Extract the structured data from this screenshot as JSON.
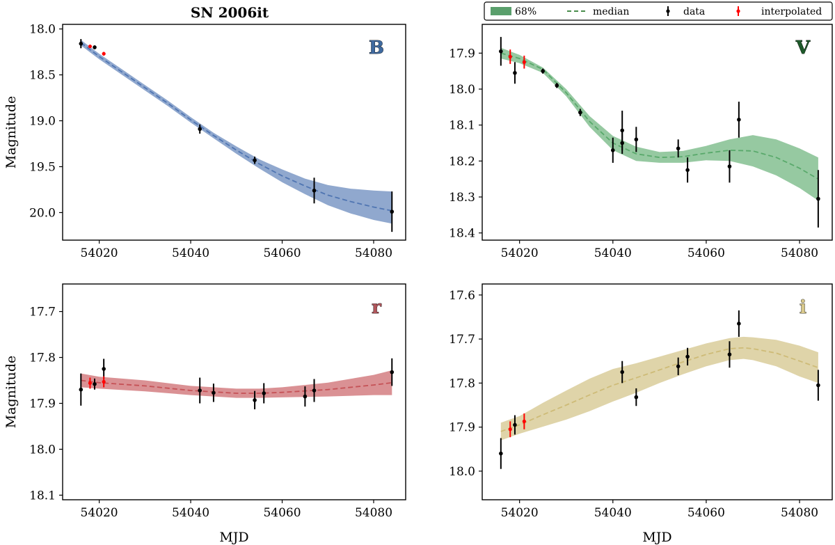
{
  "figure": {
    "title": "SN 2006it",
    "ylabel": "Magnitude",
    "xlabel": "MJD",
    "legend": {
      "placement": "top-right",
      "entries": [
        {
          "key": "band",
          "label": "68%"
        },
        {
          "key": "median",
          "label": "median"
        },
        {
          "key": "data",
          "label": "data"
        },
        {
          "key": "interp",
          "label": "interpolated"
        }
      ],
      "colors": {
        "band": "#5a9f6c",
        "median": "#2e7d32",
        "data": "#000000",
        "interp": "#ff0000"
      }
    }
  },
  "chart_data": [
    {
      "type": "line",
      "band": "B",
      "color": "#4c72b0",
      "label_color": "#3f6aa0",
      "xlim": [
        54012,
        54087
      ],
      "ylim": [
        20.3,
        17.95
      ],
      "inverted_y": true,
      "xticks": [
        54020,
        54040,
        54060,
        54080
      ],
      "yticks": [
        18.0,
        18.5,
        19.0,
        19.5,
        20.0
      ],
      "ytick_labels": [
        "18.0",
        "18.5",
        "19.0",
        "19.5",
        "20.0"
      ],
      "median": {
        "x": [
          54016,
          54020,
          54025,
          54030,
          54035,
          54040,
          54045,
          54050,
          54055,
          54060,
          54065,
          54070,
          54075,
          54080,
          54084
        ],
        "y": [
          18.15,
          18.3,
          18.47,
          18.64,
          18.81,
          18.99,
          19.16,
          19.32,
          19.47,
          19.6,
          19.71,
          19.81,
          19.88,
          19.94,
          19.98
        ]
      },
      "band_lo": [
        18.12,
        18.27,
        18.44,
        18.61,
        18.78,
        18.96,
        19.13,
        19.28,
        19.42,
        19.53,
        19.63,
        19.7,
        19.74,
        19.76,
        19.77
      ],
      "band_hi": [
        18.18,
        18.33,
        18.5,
        18.67,
        18.84,
        19.02,
        19.19,
        19.36,
        19.52,
        19.67,
        19.8,
        19.92,
        20.01,
        20.08,
        20.12
      ],
      "data": [
        {
          "x": 54016,
          "y": 18.16,
          "err": 0.05
        },
        {
          "x": 54019,
          "y": 18.2,
          "err": 0.02
        },
        {
          "x": 54042,
          "y": 19.09,
          "err": 0.05
        },
        {
          "x": 54054,
          "y": 19.43,
          "err": 0.04
        },
        {
          "x": 54067,
          "y": 19.76,
          "err": 0.14
        },
        {
          "x": 54084,
          "y": 19.99,
          "err": 0.22
        }
      ],
      "interpolated": [
        {
          "x": 54018,
          "y": 18.19,
          "err": 0.01
        },
        {
          "x": 54021,
          "y": 18.27,
          "err": 0.02
        }
      ]
    },
    {
      "type": "line",
      "band": "V",
      "color": "#55a868",
      "label_color": "#1e5a2a",
      "xlim": [
        54012,
        54087
      ],
      "ylim": [
        18.42,
        17.82
      ],
      "inverted_y": true,
      "xticks": [
        54020,
        54040,
        54060,
        54080
      ],
      "yticks": [
        17.9,
        18.0,
        18.1,
        18.2,
        18.3,
        18.4
      ],
      "ytick_labels": [
        "17.9",
        "18.0",
        "18.1",
        "18.2",
        "18.3",
        "18.4"
      ],
      "median": {
        "x": [
          54016,
          54020,
          54025,
          54030,
          54035,
          54040,
          54045,
          54050,
          54055,
          54060,
          54065,
          54070,
          54075,
          54080,
          54084
        ],
        "y": [
          17.9,
          17.915,
          17.945,
          18.01,
          18.09,
          18.15,
          18.18,
          18.19,
          18.188,
          18.178,
          18.17,
          18.172,
          18.19,
          18.22,
          18.25
        ]
      },
      "band_lo": [
        17.885,
        17.905,
        17.94,
        18.0,
        18.075,
        18.13,
        18.16,
        18.175,
        18.172,
        18.158,
        18.14,
        18.128,
        18.14,
        18.165,
        18.19
      ],
      "band_hi": [
        17.915,
        17.928,
        17.955,
        18.02,
        18.105,
        18.17,
        18.2,
        18.205,
        18.205,
        18.198,
        18.2,
        18.215,
        18.24,
        18.275,
        18.31
      ],
      "data": [
        {
          "x": 54016,
          "y": 17.895,
          "err": 0.04
        },
        {
          "x": 54019,
          "y": 17.955,
          "err": 0.03
        },
        {
          "x": 54025,
          "y": 17.95,
          "err": 0.007
        },
        {
          "x": 54028,
          "y": 17.99,
          "err": 0.007
        },
        {
          "x": 54033,
          "y": 18.065,
          "err": 0.01
        },
        {
          "x": 54040,
          "y": 18.17,
          "err": 0.035
        },
        {
          "x": 54042,
          "y": 18.115,
          "err": 0.055
        },
        {
          "x": 54042,
          "y": 18.15,
          "err": 0.03
        },
        {
          "x": 54045,
          "y": 18.14,
          "err": 0.035
        },
        {
          "x": 54054,
          "y": 18.165,
          "err": 0.025
        },
        {
          "x": 54056,
          "y": 18.225,
          "err": 0.035
        },
        {
          "x": 54065,
          "y": 18.215,
          "err": 0.045
        },
        {
          "x": 54067,
          "y": 18.085,
          "err": 0.05
        },
        {
          "x": 54084,
          "y": 18.305,
          "err": 0.08
        }
      ],
      "interpolated": [
        {
          "x": 54018,
          "y": 17.91,
          "err": 0.02
        },
        {
          "x": 54021,
          "y": 17.925,
          "err": 0.018
        }
      ]
    },
    {
      "type": "line",
      "band": "r",
      "color": "#c44e52",
      "label_color": "#b0555b",
      "xlim": [
        54012,
        54087
      ],
      "ylim": [
        18.11,
        17.64
      ],
      "inverted_y": true,
      "xticks": [
        54020,
        54040,
        54060,
        54080
      ],
      "yticks": [
        17.7,
        17.8,
        17.9,
        18.0,
        18.1
      ],
      "ytick_labels": [
        "17.7",
        "17.8",
        "17.9",
        "18.0",
        "18.1"
      ],
      "median": {
        "x": [
          54016,
          54020,
          54030,
          54040,
          54050,
          54055,
          54060,
          54070,
          54080,
          54084
        ],
        "y": [
          17.85,
          17.855,
          17.862,
          17.872,
          17.878,
          17.878,
          17.876,
          17.87,
          17.86,
          17.855
        ]
      },
      "band_lo": [
        17.835,
        17.842,
        17.85,
        17.862,
        17.868,
        17.868,
        17.865,
        17.855,
        17.838,
        17.828
      ],
      "band_hi": [
        17.865,
        17.868,
        17.874,
        17.882,
        17.888,
        17.888,
        17.887,
        17.885,
        17.882,
        17.882
      ],
      "data": [
        {
          "x": 54016,
          "y": 17.87,
          "err": 0.035
        },
        {
          "x": 54019,
          "y": 17.858,
          "err": 0.012
        },
        {
          "x": 54021,
          "y": 17.825,
          "err": 0.022
        },
        {
          "x": 54042,
          "y": 17.872,
          "err": 0.028
        },
        {
          "x": 54045,
          "y": 17.877,
          "err": 0.02
        },
        {
          "x": 54054,
          "y": 17.893,
          "err": 0.02
        },
        {
          "x": 54056,
          "y": 17.878,
          "err": 0.022
        },
        {
          "x": 54065,
          "y": 17.885,
          "err": 0.022
        },
        {
          "x": 54067,
          "y": 17.872,
          "err": 0.025
        },
        {
          "x": 54084,
          "y": 17.832,
          "err": 0.03
        }
      ],
      "interpolated": [
        {
          "x": 54018,
          "y": 17.856,
          "err": 0.012
        },
        {
          "x": 54021,
          "y": 17.853,
          "err": 0.012
        }
      ]
    },
    {
      "type": "line",
      "band": "i",
      "color": "#ccb974",
      "label_color": "#d8c88a",
      "xlim": [
        54012,
        54087
      ],
      "ylim": [
        18.065,
        17.575
      ],
      "inverted_y": true,
      "xticks": [
        54020,
        54040,
        54060,
        54080
      ],
      "yticks": [
        17.6,
        17.7,
        17.8,
        17.9,
        18.0
      ],
      "ytick_labels": [
        "17.6",
        "17.7",
        "17.8",
        "17.9",
        "18.0"
      ],
      "median": {
        "x": [
          54016,
          54020,
          54025,
          54030,
          54035,
          54040,
          54045,
          54050,
          54055,
          54060,
          54065,
          54068,
          54070,
          54075,
          54080,
          54084
        ],
        "y": [
          17.91,
          17.895,
          17.872,
          17.85,
          17.827,
          17.805,
          17.788,
          17.77,
          17.752,
          17.735,
          17.722,
          17.72,
          17.722,
          17.732,
          17.75,
          17.765
        ]
      },
      "band_lo": [
        17.89,
        17.875,
        17.845,
        17.817,
        17.79,
        17.768,
        17.755,
        17.74,
        17.725,
        17.71,
        17.698,
        17.695,
        17.696,
        17.702,
        17.715,
        17.73
      ],
      "band_hi": [
        17.93,
        17.915,
        17.899,
        17.883,
        17.864,
        17.842,
        17.822,
        17.8,
        17.78,
        17.762,
        17.748,
        17.745,
        17.748,
        17.762,
        17.785,
        17.8
      ],
      "data": [
        {
          "x": 54016,
          "y": 17.96,
          "err": 0.035
        },
        {
          "x": 54019,
          "y": 17.895,
          "err": 0.022
        },
        {
          "x": 54042,
          "y": 17.775,
          "err": 0.025
        },
        {
          "x": 54045,
          "y": 17.832,
          "err": 0.02
        },
        {
          "x": 54054,
          "y": 17.762,
          "err": 0.02
        },
        {
          "x": 54056,
          "y": 17.74,
          "err": 0.02
        },
        {
          "x": 54065,
          "y": 17.735,
          "err": 0.03
        },
        {
          "x": 54067,
          "y": 17.665,
          "err": 0.03
        },
        {
          "x": 54084,
          "y": 17.805,
          "err": 0.035
        }
      ],
      "interpolated": [
        {
          "x": 54018,
          "y": 17.905,
          "err": 0.018
        },
        {
          "x": 54021,
          "y": 17.887,
          "err": 0.018
        }
      ]
    }
  ]
}
